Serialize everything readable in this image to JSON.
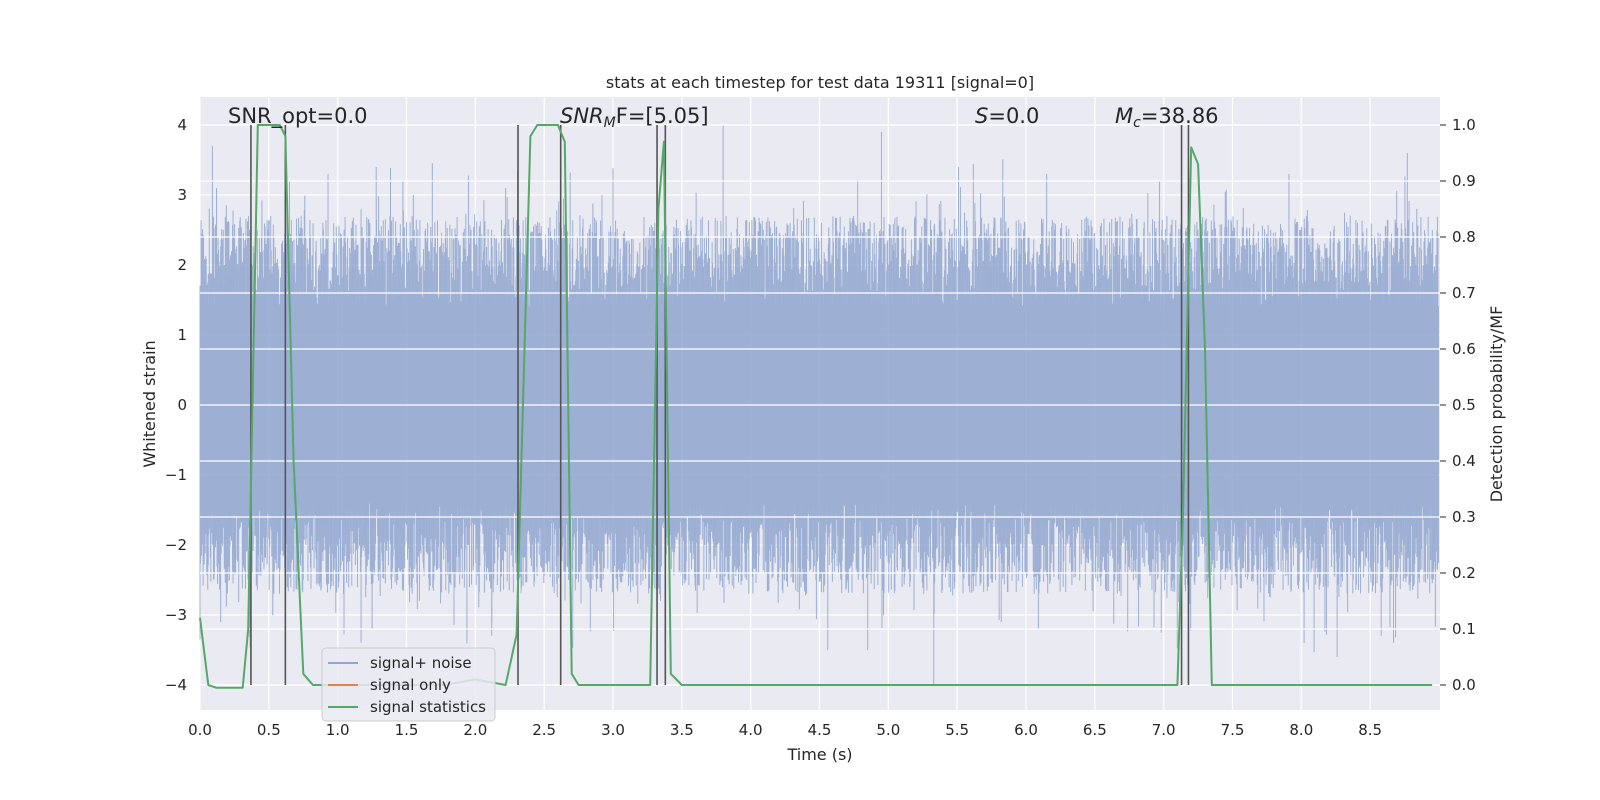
{
  "chart_data": {
    "type": "line",
    "title": "stats at each timestep for test data 19311 [signal=0]",
    "xlabel": "Time (s)",
    "ylabel": "Whitened strain",
    "y2label": "Detection probability/MF",
    "xlim": [
      0,
      9.0
    ],
    "ylim": [
      -4.4,
      4.4
    ],
    "y2lim": [
      -0.05,
      1.05
    ],
    "xticks": [
      "0.0",
      "0.5",
      "1.0",
      "1.5",
      "2.0",
      "2.5",
      "3.0",
      "3.5",
      "4.0",
      "4.5",
      "5.0",
      "5.5",
      "6.0",
      "6.5",
      "7.0",
      "7.5",
      "8.0",
      "8.5"
    ],
    "yticks": [
      "4",
      "3",
      "2",
      "1",
      "0",
      "−1",
      "−2",
      "−3",
      "−4"
    ],
    "y2ticks": [
      "1.0",
      "0.9",
      "0.8",
      "0.7",
      "0.6",
      "0.5",
      "0.4",
      "0.3",
      "0.2",
      "0.1",
      "0.0"
    ],
    "grid": true,
    "legend": {
      "position": "lower-left",
      "entries": [
        {
          "label": "signal+ noise",
          "color": "#8fa6cf"
        },
        {
          "label": "signal only",
          "color": "#dd8452"
        },
        {
          "label": "signal statistics",
          "color": "#55a868"
        }
      ]
    },
    "annotations": {
      "snr_opt": "SNR_opt=0.0",
      "snr_mf": "SNR",
      "snr_mf_sub": "M",
      "snr_mf_rest": "F=[5.05]",
      "s_stat": "S",
      "s_rest": "=0.0",
      "mc": "M",
      "mc_sub": "c",
      "mc_rest": "=38.86"
    },
    "noise": {
      "name": "signal+ noise",
      "envelope_typical": 1.6,
      "peak_values": [
        {
          "x": 0.09,
          "y": 3.7
        },
        {
          "x": 0.65,
          "y": 3.2
        },
        {
          "x": 0.93,
          "y": 3.3
        },
        {
          "x": 1.28,
          "y": 3.4
        },
        {
          "x": 1.55,
          "y": 3.0
        },
        {
          "x": 2.22,
          "y": 3.1
        },
        {
          "x": 2.92,
          "y": 3.0
        },
        {
          "x": 3.8,
          "y": 4.0
        },
        {
          "x": 4.95,
          "y": 3.9
        },
        {
          "x": 5.51,
          "y": 3.4
        },
        {
          "x": 6.15,
          "y": 3.3
        },
        {
          "x": 6.97,
          "y": 3.2
        },
        {
          "x": 7.91,
          "y": 3.3
        },
        {
          "x": 8.77,
          "y": 3.6
        },
        {
          "x": 0.15,
          "y": -3.1
        },
        {
          "x": 1.25,
          "y": -3.2
        },
        {
          "x": 2.12,
          "y": -3.1
        },
        {
          "x": 4.56,
          "y": -3.5
        },
        {
          "x": 4.85,
          "y": -3.5
        },
        {
          "x": 5.33,
          "y": -4.0
        },
        {
          "x": 5.82,
          "y": -3.1
        },
        {
          "x": 6.09,
          "y": -3.2
        },
        {
          "x": 8.02,
          "y": -3.4
        },
        {
          "x": 8.26,
          "y": -3.6
        },
        {
          "x": 8.67,
          "y": -3.4
        }
      ]
    },
    "series": [
      {
        "name": "signal statistics",
        "color": "#55a868",
        "axis": "right",
        "x": [
          0.0,
          0.06,
          0.12,
          0.25,
          0.31,
          0.35,
          0.42,
          0.5,
          0.58,
          0.62,
          0.68,
          0.75,
          0.82,
          1.5,
          1.78,
          2.0,
          2.22,
          2.3,
          2.4,
          2.45,
          2.5,
          2.6,
          2.65,
          2.7,
          2.75,
          2.85,
          3.2,
          3.27,
          3.33,
          3.37,
          3.42,
          3.5,
          7.1,
          7.14,
          7.2,
          7.25,
          7.3,
          7.35,
          7.45,
          8.0,
          8.95
        ],
        "y": [
          0.12,
          0.0,
          -0.005,
          -0.005,
          -0.005,
          0.1,
          1.0,
          1.0,
          1.0,
          0.98,
          0.4,
          0.02,
          0.0,
          0.0,
          0.0,
          0.01,
          0.0,
          0.09,
          0.98,
          1.0,
          1.0,
          1.0,
          0.97,
          0.02,
          0.0,
          0.0,
          0.0,
          0.0,
          0.85,
          0.97,
          0.02,
          0.0,
          0.0,
          0.3,
          0.96,
          0.93,
          0.6,
          0.0,
          0.0,
          0.0,
          0.0
        ]
      }
    ],
    "vlines": [
      0.37,
      0.62,
      2.31,
      2.62,
      3.32,
      3.38,
      7.13,
      7.18
    ]
  }
}
